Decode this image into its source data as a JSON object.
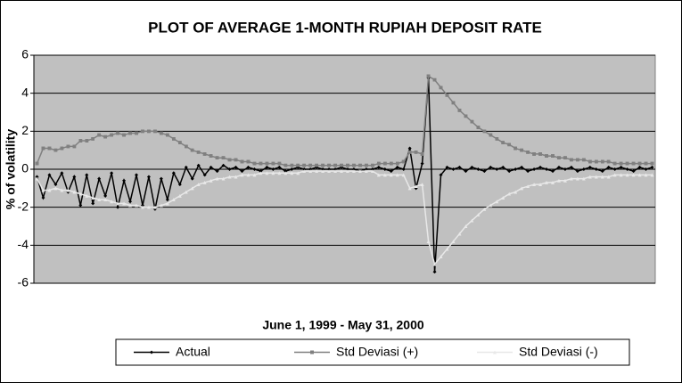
{
  "chart_data": {
    "type": "line",
    "title": "PLOT OF AVERAGE 1-MONTH RUPIAH DEPOSIT RATE",
    "x_label": "June 1, 1999 - May 31, 2000",
    "y_label": "% of volatility",
    "ylim": [
      -6,
      6
    ],
    "yticks": [
      -6,
      -4,
      -2,
      0,
      2,
      4,
      6
    ],
    "grid": true,
    "legend": "bottom",
    "series": [
      {
        "name": "Actual",
        "color": "#000000",
        "marker": "diamond",
        "values": [
          -0.4,
          -1.5,
          -0.3,
          -0.8,
          -0.2,
          -1.2,
          -0.4,
          -1.9,
          -0.3,
          -1.8,
          -0.5,
          -1.4,
          -0.2,
          -2.0,
          -0.6,
          -1.7,
          -0.3,
          -1.9,
          -0.4,
          -2.1,
          -0.5,
          -1.6,
          -0.2,
          -0.8,
          0.1,
          -0.5,
          0.2,
          -0.3,
          0.1,
          -0.1,
          0.2,
          0.0,
          0.1,
          -0.1,
          0.1,
          0.0,
          -0.1,
          0.1,
          0.0,
          0.1,
          -0.1,
          0.0,
          0.1,
          0.0,
          0.0,
          0.1,
          0.0,
          0.0,
          0.0,
          0.1,
          0.0,
          0.0,
          -0.1,
          0.0,
          0.0,
          0.1,
          0.0,
          -0.1,
          0.1,
          0.0,
          1.1,
          -1.0,
          0.3,
          4.8,
          -5.4,
          -0.3,
          0.1,
          0.0,
          0.1,
          -0.1,
          0.1,
          0.0,
          -0.1,
          0.1,
          0.0,
          0.1,
          -0.1,
          0.0,
          0.1,
          -0.1,
          0.0,
          0.1,
          0.0,
          -0.1,
          0.1,
          0.0,
          0.1,
          -0.1,
          0.0,
          0.1,
          0.0,
          -0.1,
          0.1,
          0.0,
          0.1,
          0.0,
          -0.1,
          0.1,
          0.0,
          0.1
        ]
      },
      {
        "name": "Std Deviasi (+)",
        "color": "#808080",
        "marker": "square",
        "values": [
          0.3,
          1.1,
          1.1,
          1.0,
          1.1,
          1.2,
          1.2,
          1.5,
          1.5,
          1.6,
          1.8,
          1.7,
          1.8,
          1.9,
          1.8,
          1.9,
          1.9,
          2.0,
          2.0,
          2.0,
          1.9,
          1.8,
          1.6,
          1.4,
          1.2,
          1.0,
          0.9,
          0.8,
          0.7,
          0.6,
          0.6,
          0.5,
          0.5,
          0.4,
          0.4,
          0.3,
          0.3,
          0.3,
          0.3,
          0.3,
          0.2,
          0.2,
          0.2,
          0.2,
          0.2,
          0.2,
          0.2,
          0.2,
          0.2,
          0.2,
          0.2,
          0.2,
          0.2,
          0.2,
          0.2,
          0.3,
          0.3,
          0.3,
          0.3,
          0.4,
          0.9,
          0.9,
          0.8,
          4.9,
          4.7,
          4.3,
          3.9,
          3.5,
          3.1,
          2.8,
          2.5,
          2.2,
          2.0,
          1.8,
          1.6,
          1.4,
          1.3,
          1.1,
          1.0,
          0.9,
          0.8,
          0.8,
          0.7,
          0.7,
          0.6,
          0.6,
          0.5,
          0.5,
          0.5,
          0.4,
          0.4,
          0.4,
          0.4,
          0.3,
          0.3,
          0.3,
          0.3,
          0.3,
          0.3,
          0.3
        ]
      },
      {
        "name": "Std Deviasi (-)",
        "color": "#e8e8e8",
        "marker": "triangle",
        "values": [
          -0.5,
          -1.1,
          -1.1,
          -1.0,
          -1.1,
          -1.1,
          -1.2,
          -1.3,
          -1.4,
          -1.5,
          -1.6,
          -1.6,
          -1.7,
          -1.8,
          -1.8,
          -1.9,
          -1.9,
          -2.0,
          -2.0,
          -2.0,
          -1.9,
          -1.8,
          -1.6,
          -1.4,
          -1.2,
          -1.0,
          -0.8,
          -0.7,
          -0.6,
          -0.5,
          -0.5,
          -0.4,
          -0.4,
          -0.3,
          -0.3,
          -0.3,
          -0.2,
          -0.2,
          -0.2,
          -0.2,
          -0.2,
          -0.2,
          -0.2,
          -0.1,
          -0.1,
          -0.1,
          -0.1,
          -0.1,
          -0.1,
          -0.1,
          -0.1,
          -0.1,
          -0.1,
          -0.1,
          -0.1,
          -0.3,
          -0.3,
          -0.3,
          -0.3,
          -0.3,
          -1.0,
          -0.9,
          -0.8,
          -3.8,
          -5.0,
          -4.6,
          -4.2,
          -3.8,
          -3.4,
          -3.0,
          -2.7,
          -2.4,
          -2.1,
          -1.9,
          -1.7,
          -1.5,
          -1.3,
          -1.2,
          -1.0,
          -0.9,
          -0.8,
          -0.8,
          -0.7,
          -0.7,
          -0.6,
          -0.6,
          -0.5,
          -0.5,
          -0.5,
          -0.4,
          -0.4,
          -0.4,
          -0.4,
          -0.3,
          -0.3,
          -0.3,
          -0.3,
          -0.3,
          -0.3,
          -0.3
        ]
      }
    ]
  }
}
